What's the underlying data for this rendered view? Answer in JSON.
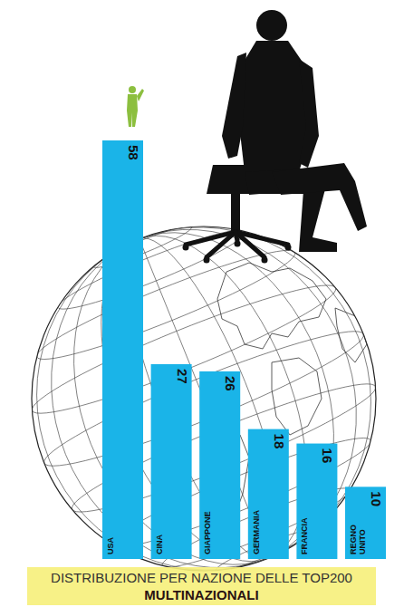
{
  "chart_data": {
    "type": "bar",
    "title": "DISTRIBUZIONE PER NAZIONE DELLE TOP200 MULTINAZIONALI",
    "categories": [
      "USA",
      "CINA",
      "GIAPPONE",
      "GERMANIA",
      "FRANCIA",
      "REGNO UNITO"
    ],
    "values": [
      58,
      27,
      26,
      18,
      16,
      10
    ],
    "color": "#1ab4e8",
    "ylim": [
      0,
      58
    ],
    "data_labels": true,
    "tick_labels": "x",
    "grid": false
  }
}
